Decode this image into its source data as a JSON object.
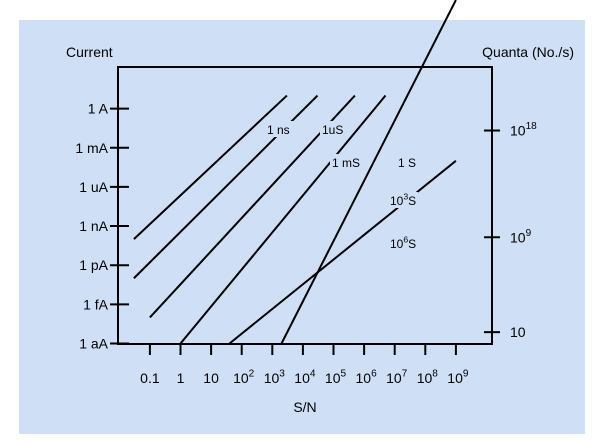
{
  "chart_data": {
    "type": "line",
    "title": "",
    "xlabel": "S/N",
    "ylabel_left": "Current",
    "ylabel_right": "Quanta (No./s)",
    "grid": false,
    "x_ticks": [
      {
        "value": 0.1,
        "label": "0.1"
      },
      {
        "value": 1,
        "label": "1"
      },
      {
        "value": 10,
        "label": "10"
      },
      {
        "value": 100,
        "base": "10",
        "exp": "2"
      },
      {
        "value": 1000,
        "base": "10",
        "exp": "3"
      },
      {
        "value": 10000,
        "base": "10",
        "exp": "4"
      },
      {
        "value": 100000,
        "base": "10",
        "exp": "5"
      },
      {
        "value": 1000000,
        "base": "10",
        "exp": "6"
      },
      {
        "value": 10000000,
        "base": "10",
        "exp": "7"
      },
      {
        "value": 100000000,
        "base": "10",
        "exp": "8"
      },
      {
        "value": 1000000000,
        "base": "10",
        "exp": "9"
      }
    ],
    "y_left_ticks": [
      {
        "value": 1e-18,
        "label": "1 aA"
      },
      {
        "value": 1e-15,
        "label": "1 fA"
      },
      {
        "value": 1e-12,
        "label": "1 pA"
      },
      {
        "value": 1e-09,
        "label": "1 nA"
      },
      {
        "value": 1e-06,
        "label": "1 uA"
      },
      {
        "value": 0.001,
        "label": "1 mA"
      },
      {
        "value": 1,
        "label": "1 A"
      }
    ],
    "y_right_ticks": [
      {
        "value": 10,
        "base": "10",
        "exp": ""
      },
      {
        "value": 1000000000.0,
        "base": "10",
        "exp": "9"
      },
      {
        "value": 1e+18,
        "base": "10",
        "exp": "18"
      }
    ],
    "series": [
      {
        "label": "1 ns",
        "points": [
          [
            0.03,
            1e-10
          ],
          [
            3000,
            10.0
          ]
        ]
      },
      {
        "label": "1uS",
        "points": [
          [
            0.03,
            1e-13
          ],
          [
            30000,
            10.0
          ]
        ]
      },
      {
        "label": "1 mS",
        "points": [
          [
            0.1,
            1e-16
          ],
          [
            500000,
            10.0
          ]
        ]
      },
      {
        "label": "1 S",
        "label_base": "",
        "points": [
          [
            1,
            1e-18
          ],
          [
            5000000,
            10.0
          ]
        ]
      },
      {
        "label_base": "10",
        "label_exp": "3",
        "label_suffix": "S",
        "points": [
          [
            40,
            1e-18
          ],
          [
            1000000000,
            0.0001
          ]
        ]
      },
      {
        "label_base": "10",
        "label_exp": "6",
        "label_suffix": "S",
        "points": [
          [
            2000,
            1e-18
          ],
          [
            1000000000,
            -1
          ]
        ]
      }
    ]
  }
}
